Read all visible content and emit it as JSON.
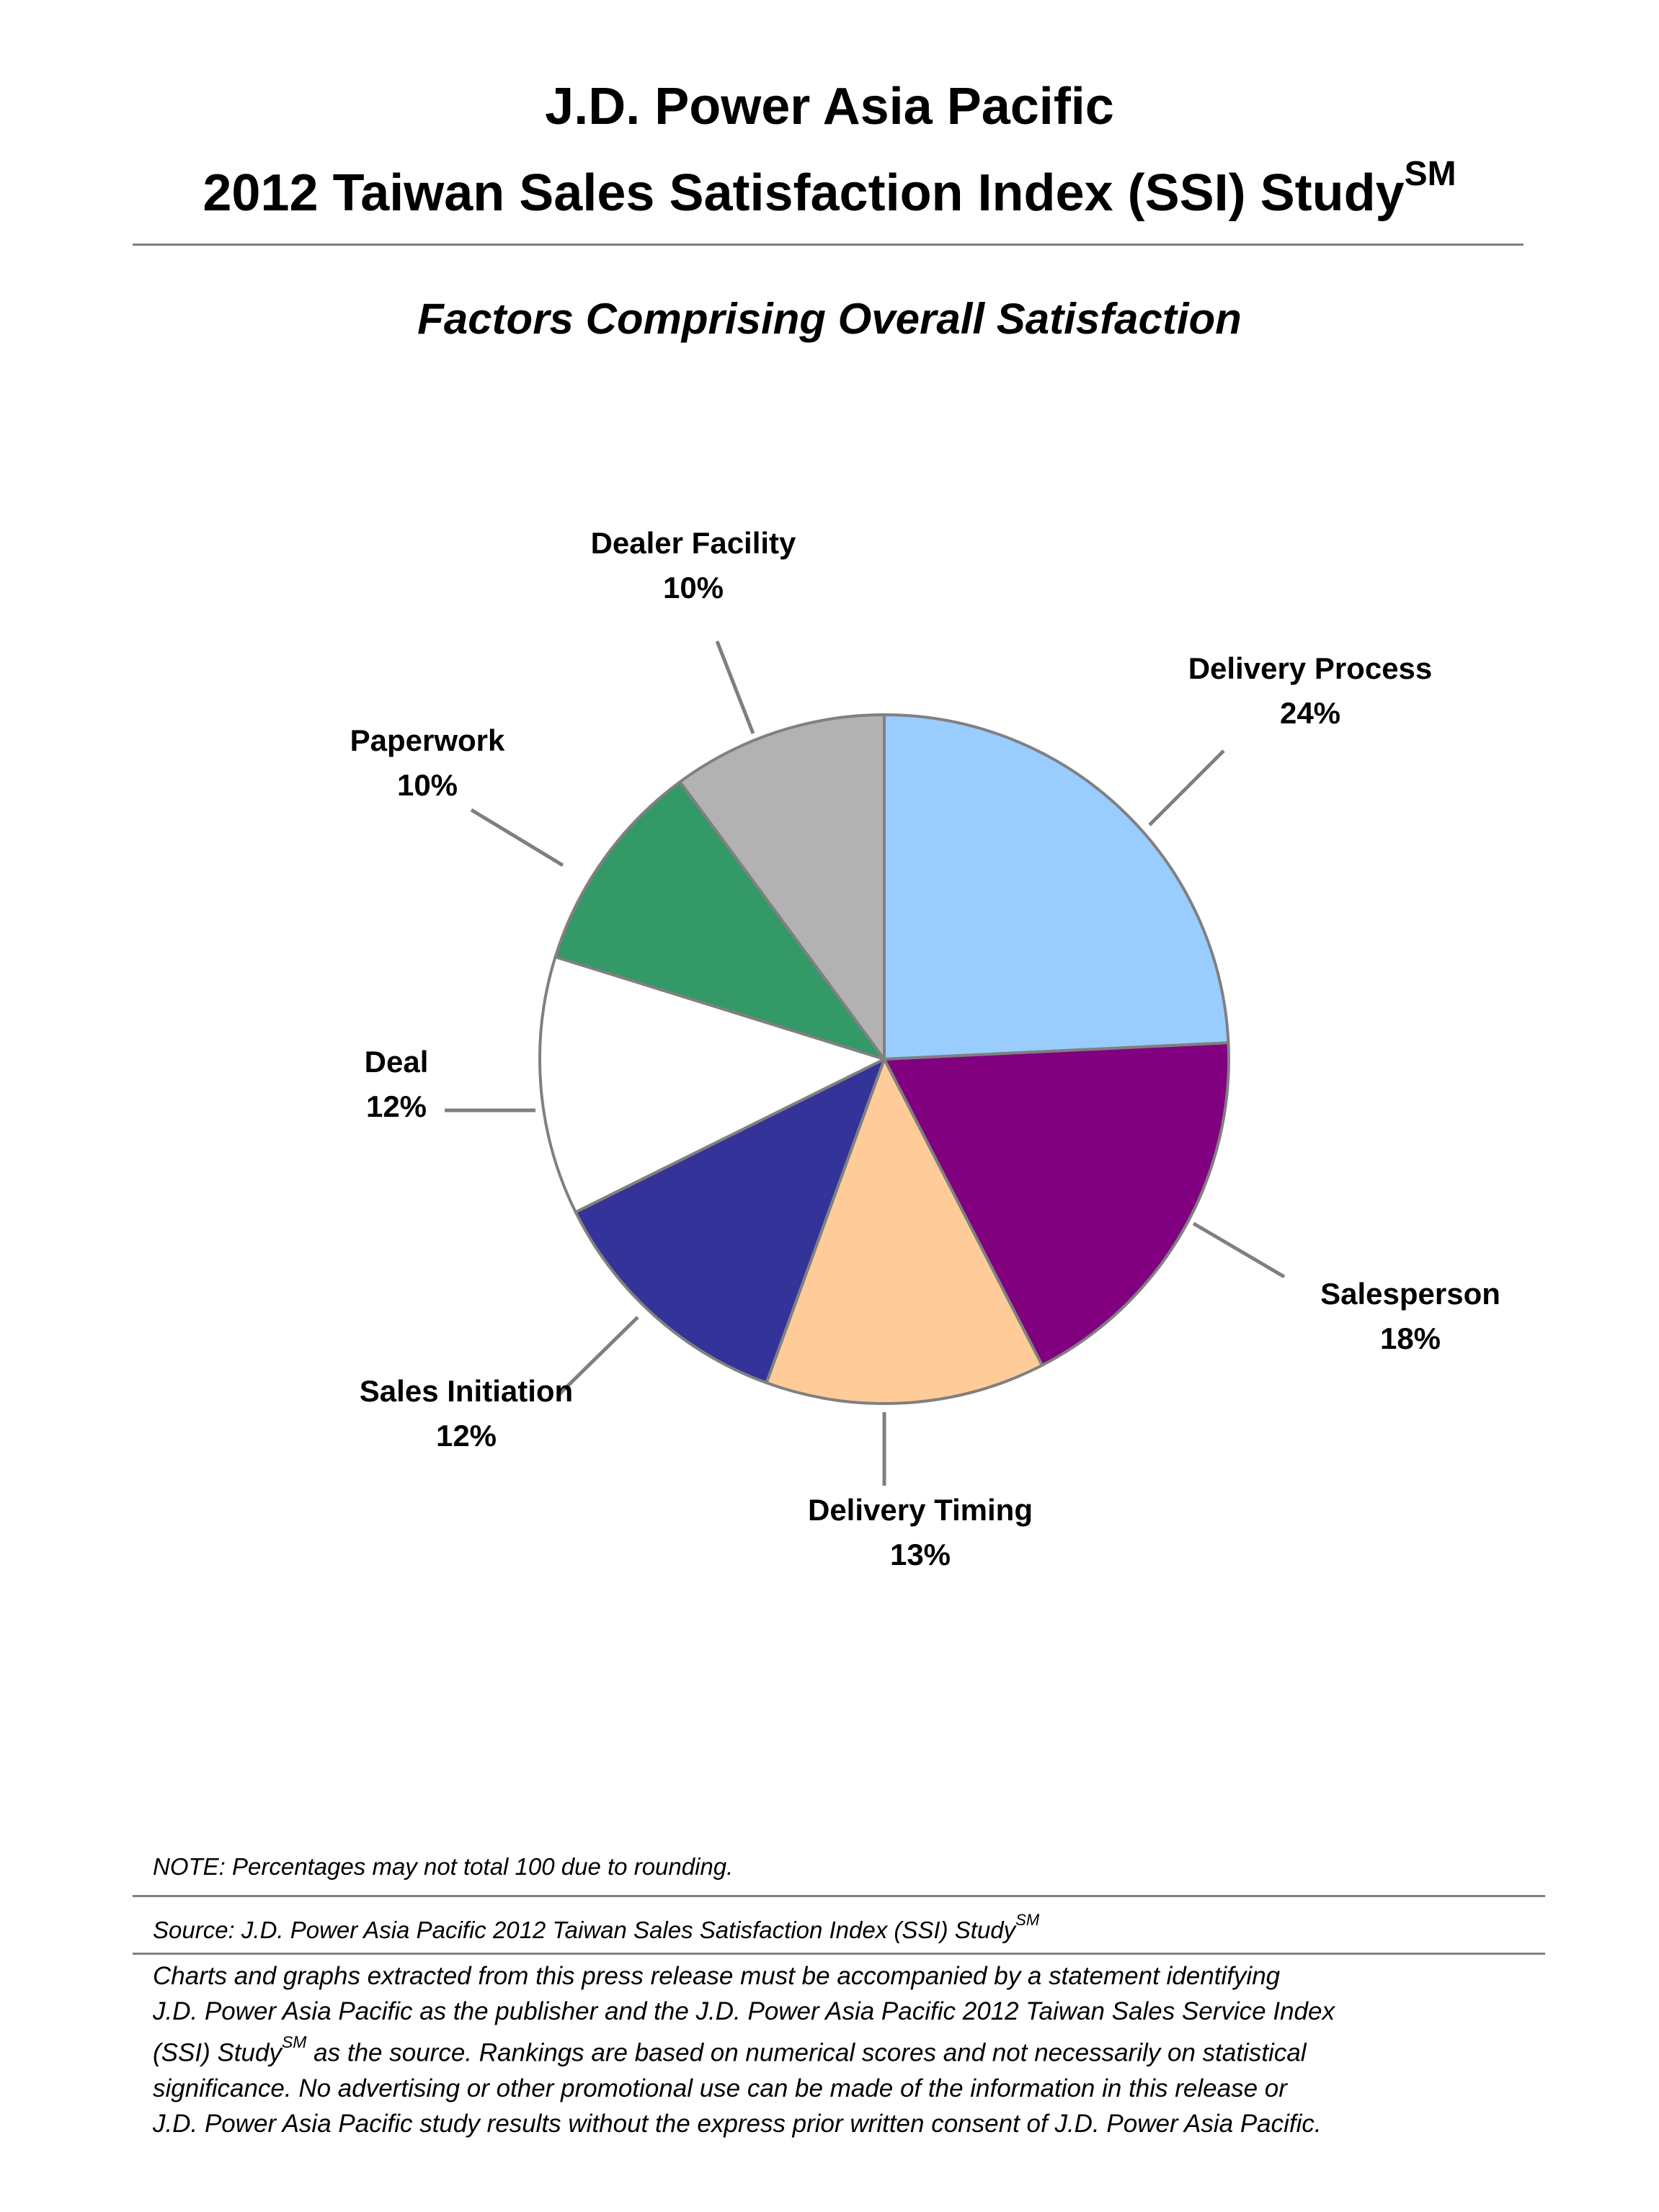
{
  "header": {
    "title_line1": "J.D. Power Asia Pacific",
    "title_line2": "2012 Taiwan Sales Satisfaction Index (SSI) Study",
    "title_superscript": "SM"
  },
  "chart_data": {
    "type": "pie",
    "title": "Factors Comprising Overall Satisfaction",
    "start_angle_deg": 0,
    "direction": "clockwise",
    "slices": [
      {
        "label": "Delivery Process",
        "value": 24,
        "value_label": "24%",
        "color": "#99ccff"
      },
      {
        "label": "Salesperson",
        "value": 18,
        "value_label": "18%",
        "color": "#800080"
      },
      {
        "label": "Delivery Timing",
        "value": 13,
        "value_label": "13%",
        "color": "#ffcc99"
      },
      {
        "label": "Sales Initiation",
        "value": 12,
        "value_label": "12%",
        "color": "#333399"
      },
      {
        "label": "Deal",
        "value": 12,
        "value_label": "12%",
        "color": "#ffffff"
      },
      {
        "label": "Paperwork",
        "value": 10,
        "value_label": "10%",
        "color": "#339966"
      },
      {
        "label": "Dealer Facility",
        "value": 10,
        "value_label": "10%",
        "color": "#b2b2b2"
      }
    ],
    "slice_border_color": "#808080",
    "leader_line_color": "#7f7f7f"
  },
  "notes": {
    "note": "NOTE: Percentages may not total 100 due to rounding.",
    "source_prefix": "Source: J.D. Power Asia Pacific 2012 Taiwan Sales Satisfaction Index (SSI) Study",
    "source_superscript": "SM"
  },
  "disclaimer": {
    "line1": "Charts and graphs extracted from this press release must be accompanied by a statement identifying",
    "line2": "J.D. Power Asia Pacific as the publisher and the J.D. Power Asia Pacific 2012 Taiwan Sales Service Index",
    "line3_before": "(SSI) Study",
    "line3_superscript": "SM",
    "line3_after": " as the source. Rankings are based on numerical scores and not necessarily on statistical",
    "line4": "significance. No advertising or other promotional use can be made of the information in this release or",
    "line5": "J.D. Power Asia Pacific study results without the express prior written consent of J.D. Power Asia Pacific."
  }
}
